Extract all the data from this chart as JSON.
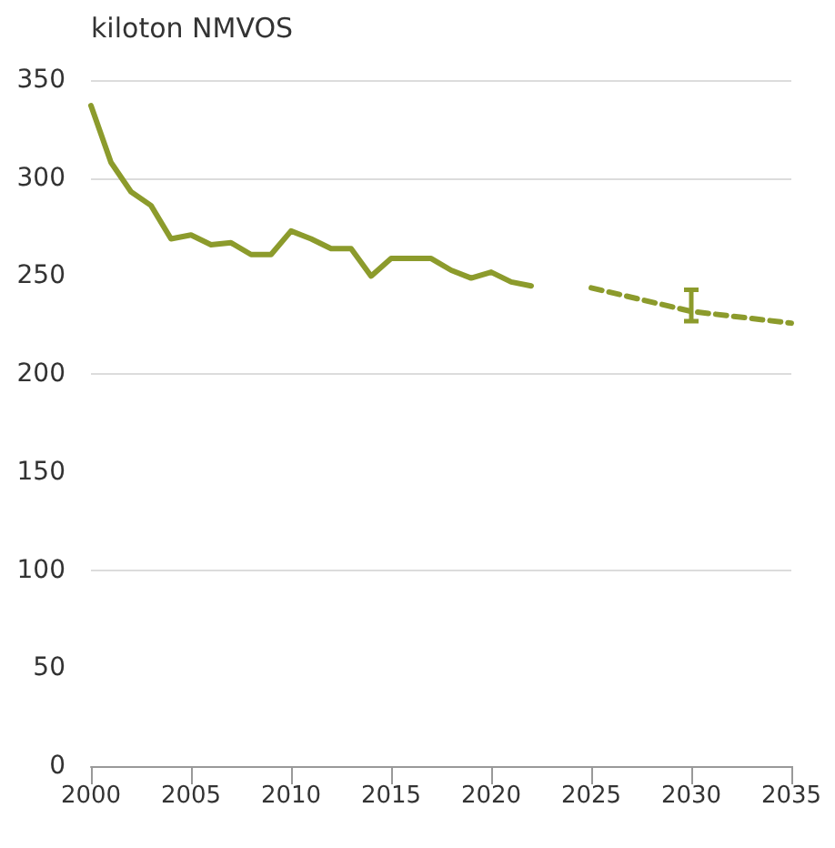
{
  "chart_data": {
    "type": "line",
    "ylabel": "kiloton NMVOS",
    "series": [
      {
        "color": "#8c9b2c",
        "line_style": "solid",
        "x": [
          2000,
          2001,
          2002,
          2003,
          2004,
          2005,
          2006,
          2007,
          2008,
          2009,
          2010,
          2011,
          2012,
          2013,
          2014,
          2015,
          2016,
          2017,
          2018,
          2019,
          2020,
          2021,
          2022
        ],
        "values": [
          337,
          308,
          293,
          286,
          269,
          271,
          266,
          267,
          261,
          261,
          273,
          269,
          264,
          264,
          250,
          259,
          259,
          259,
          253,
          249,
          252,
          247,
          245
        ]
      },
      {
        "color": "#8c9b2c",
        "line_style": "dashed",
        "x": [
          2025,
          2030,
          2035
        ],
        "values": [
          244,
          232,
          226
        ],
        "errors": [
          null,
          [
            227,
            243
          ],
          null
        ]
      }
    ],
    "xlim": [
      2000,
      2035
    ],
    "xticks": [
      2000,
      2005,
      2010,
      2015,
      2020,
      2025,
      2030,
      2035
    ],
    "ylim": [
      0,
      350
    ],
    "yticks": [
      0,
      50,
      100,
      150,
      200,
      250,
      300,
      350
    ],
    "grid": "y",
    "marker": "none"
  }
}
